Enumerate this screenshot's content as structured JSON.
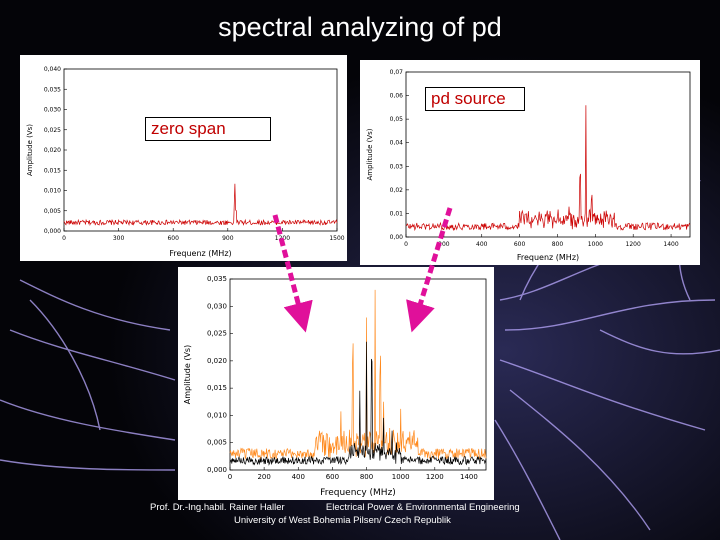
{
  "title": "spectral analyzing of pd",
  "labels": {
    "zero_span": "zero span",
    "pd_source": "pd source"
  },
  "footer": {
    "author": "Prof. Dr.-Ing.habil. Rainer Haller",
    "department": "Electrical Power & Environmental Engineering",
    "university": "University of West Bohemia Pilsen/ Czech Republik"
  },
  "colors": {
    "trace_red": "#cc0000",
    "trace_orange": "#ff8a1e",
    "trace_black": "#000000",
    "label_text": "#c00000",
    "arrow": "#e0109a"
  },
  "chart_data": [
    {
      "id": "zero-span",
      "type": "line",
      "xlabel": "Frequenz (MHz)",
      "ylabel": "Amplitude (Vs)",
      "xlim": [
        0,
        1500
      ],
      "ylim": [
        0,
        0.04
      ],
      "xticks": [
        "0",
        "300",
        "600",
        "900",
        "1200",
        "1500"
      ],
      "yticks": [
        "0,000",
        "0,005",
        "0,010",
        "0,015",
        "0,020",
        "0,025",
        "0,030",
        "0,035",
        "0,040"
      ],
      "series": [
        {
          "color": "#cc0000",
          "baseline": 0.0015,
          "noise": 0.0012,
          "peaks": [
            [
              940,
              0.014
            ],
            [
              935,
              0.007
            ],
            [
              945,
              0.006
            ]
          ]
        }
      ]
    },
    {
      "id": "pd-source",
      "type": "line",
      "xlabel": "Frequenz (MHz)",
      "ylabel": "Amplitude (Vs)",
      "xlim": [
        0,
        1500
      ],
      "ylim": [
        0,
        0.07
      ],
      "xticks": [
        "0",
        "200",
        "400",
        "600",
        "800",
        "1000",
        "1200",
        "1400"
      ],
      "yticks": [
        "0,00",
        "0,01",
        "0,02",
        "0,03",
        "0,04",
        "0,05",
        "0,06",
        "0,07"
      ],
      "series": [
        {
          "color": "#cc0000",
          "baseline": 0.003,
          "noise": 0.003,
          "bump": [
            [
              600,
              1100,
              0.006
            ]
          ],
          "peaks": [
            [
              950,
              0.068
            ],
            [
              920,
              0.032
            ],
            [
              980,
              0.018
            ],
            [
              760,
              0.012
            ],
            [
              860,
              0.015
            ],
            [
              1100,
              0.012
            ]
          ]
        }
      ]
    },
    {
      "id": "combined",
      "type": "line",
      "xlabel": "Frequency (MHz)",
      "ylabel": "Amplitude (Vs)",
      "xlim": [
        0,
        1500
      ],
      "ylim": [
        0,
        0.035
      ],
      "xticks": [
        "0",
        "200",
        "400",
        "600",
        "800",
        "1000",
        "1200",
        "1400"
      ],
      "yticks": [
        "0,000",
        "0,005",
        "0,010",
        "0,015",
        "0,020",
        "0,025",
        "0,030",
        "0,035"
      ],
      "series": [
        {
          "color": "#ff8a1e",
          "baseline": 0.002,
          "noise": 0.002,
          "bump": [
            [
              500,
              1100,
              0.004
            ]
          ],
          "peaks": [
            [
              800,
              0.035
            ],
            [
              850,
              0.035
            ],
            [
              720,
              0.024
            ],
            [
              880,
              0.022
            ],
            [
              900,
              0.015
            ],
            [
              1000,
              0.013
            ],
            [
              650,
              0.012
            ]
          ]
        },
        {
          "color": "#000000",
          "baseline": 0.001,
          "noise": 0.0015,
          "bump": [
            [
              700,
              1000,
              0.003
            ]
          ],
          "peaks": [
            [
              800,
              0.03
            ],
            [
              830,
              0.022
            ],
            [
              760,
              0.016
            ],
            [
              900,
              0.012
            ],
            [
              950,
              0.008
            ]
          ]
        }
      ]
    }
  ]
}
